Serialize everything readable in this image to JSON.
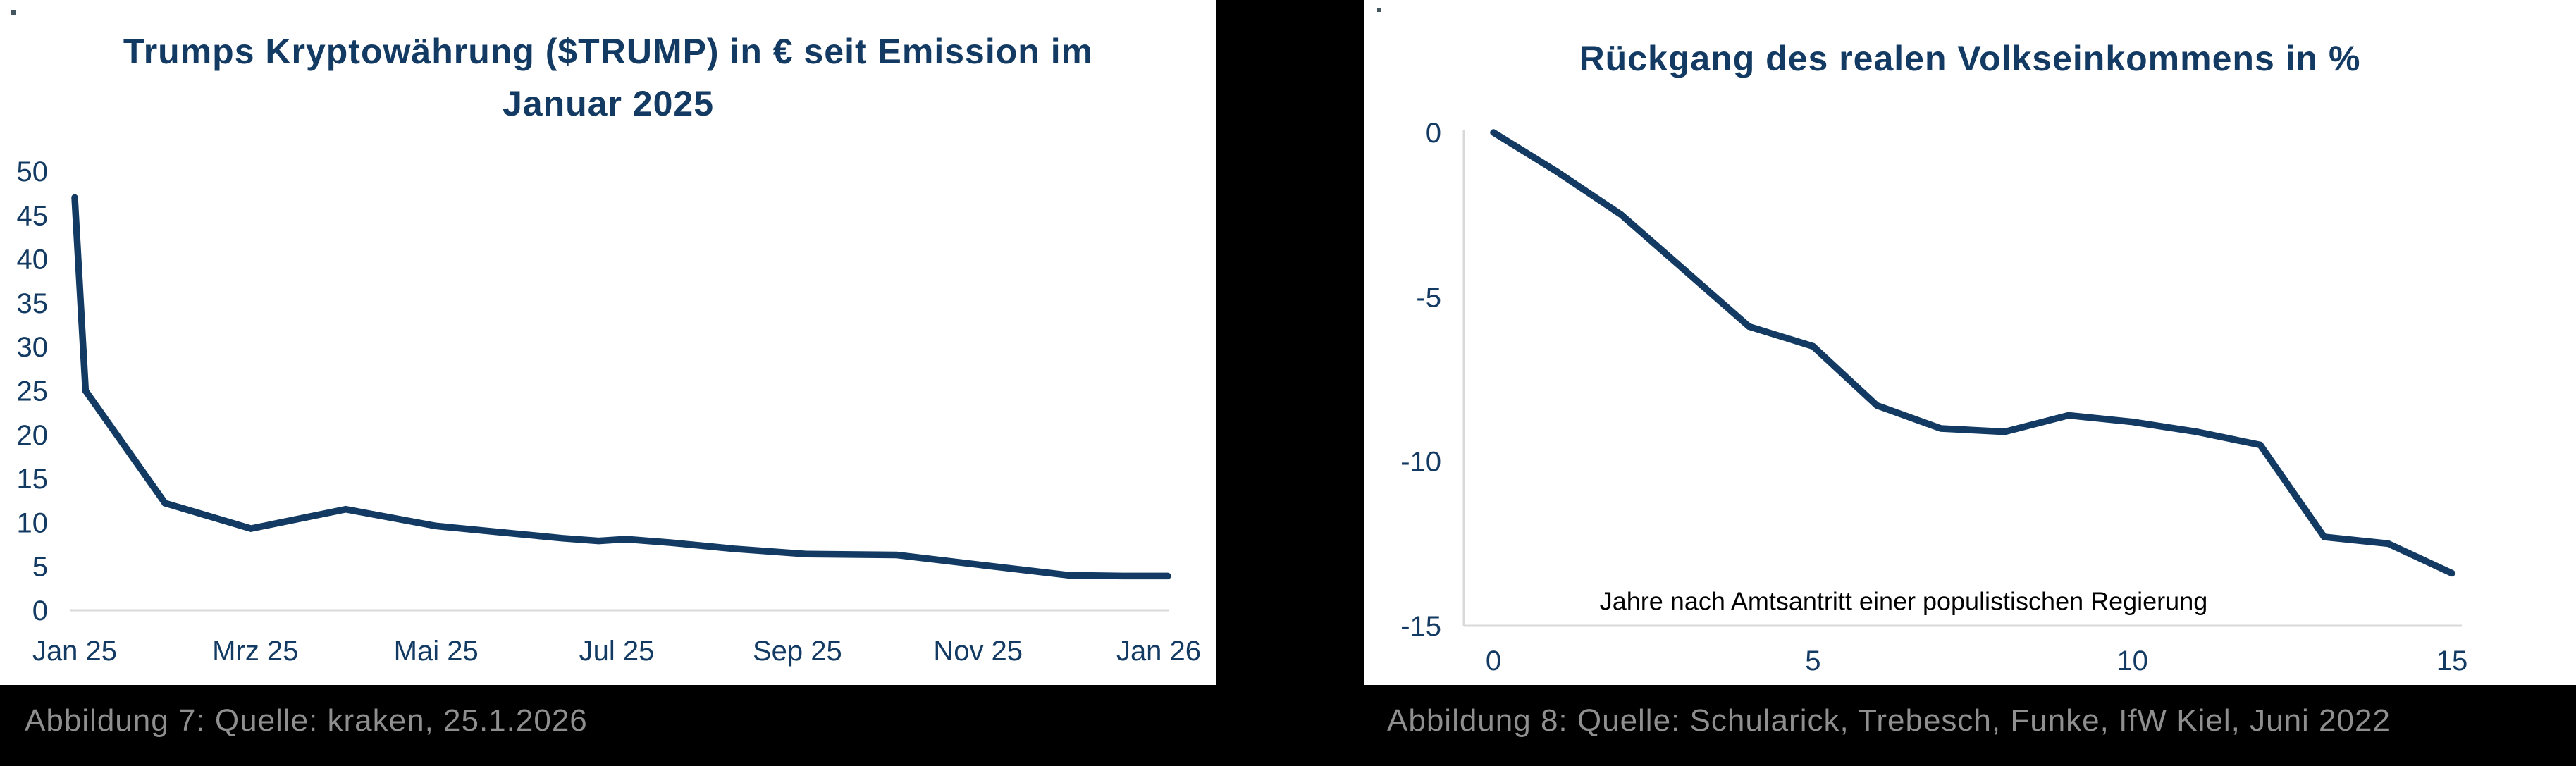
{
  "colors": {
    "background": "#000000",
    "panel": "#ffffff",
    "navy": "#123a62",
    "axis_gray": "#d9d9d9",
    "caption_gray": "#8f8f8f",
    "artifact": "#44565f"
  },
  "captions": {
    "left": "Abbildung 7: Quelle: kraken, 25.1.2026",
    "right": "Abbildung 8: Quelle: Schularick, Trebesch, Funke, IfW Kiel, Juni 2022"
  },
  "chart_data": [
    {
      "id": "trump",
      "type": "line",
      "title_lines": [
        "Trumps Kryptowährung ($TRUMP) in € seit Emission im",
        "Januar 2025"
      ],
      "title": "Trumps Kryptowährung ($TRUMP) in € seit Emission im Januar 2025",
      "xlabel": "",
      "ylabel": "",
      "xlim": [
        0,
        12
      ],
      "ylim": [
        0,
        50
      ],
      "grid": false,
      "legend": false,
      "x_ticks": [
        {
          "x": 0,
          "label": "Jan 25"
        },
        {
          "x": 2,
          "label": "Mrz 25"
        },
        {
          "x": 4,
          "label": "Mai 25"
        },
        {
          "x": 6,
          "label": "Jul 25"
        },
        {
          "x": 8,
          "label": "Sep 25"
        },
        {
          "x": 10,
          "label": "Nov 25"
        },
        {
          "x": 12,
          "label": "Jan 26"
        }
      ],
      "y_ticks": [
        0,
        5,
        10,
        15,
        20,
        25,
        30,
        35,
        40,
        45,
        50
      ],
      "points": [
        [
          0,
          47
        ],
        [
          0.12,
          25
        ],
        [
          1.0,
          12.2
        ],
        [
          1.95,
          9.3
        ],
        [
          3.0,
          11.5
        ],
        [
          4.0,
          9.6
        ],
        [
          4.7,
          8.9
        ],
        [
          5.4,
          8.2
        ],
        [
          5.8,
          7.9
        ],
        [
          6.1,
          8.1
        ],
        [
          6.6,
          7.7
        ],
        [
          7.3,
          7.0
        ],
        [
          8.1,
          6.4
        ],
        [
          9.1,
          6.3
        ],
        [
          10.0,
          5.2
        ],
        [
          11.0,
          4.0
        ],
        [
          11.6,
          3.9
        ],
        [
          12.1,
          3.9
        ]
      ]
    },
    {
      "id": "populism",
      "type": "line",
      "title_lines": [
        "Rückgang des realen Volkseinkommens in %"
      ],
      "title": "Rückgang des realen Volkseinkommens in %",
      "xlabel": "",
      "ylabel": "",
      "xlim": [
        0,
        15
      ],
      "ylim": [
        -15,
        0
      ],
      "grid": false,
      "legend": false,
      "annotation": "Jahre nach Amtsantritt einer populistischen Regierung",
      "x_ticks": [
        {
          "x": 0,
          "label": "0"
        },
        {
          "x": 5,
          "label": "5"
        },
        {
          "x": 10,
          "label": "10"
        },
        {
          "x": 15,
          "label": "15"
        }
      ],
      "y_ticks": [
        0,
        -5,
        -10,
        -15
      ],
      "points": [
        [
          0,
          0
        ],
        [
          1,
          -1.2
        ],
        [
          2,
          -2.5
        ],
        [
          3,
          -4.2
        ],
        [
          4,
          -5.9
        ],
        [
          5,
          -6.5
        ],
        [
          6,
          -8.3
        ],
        [
          7,
          -9.0
        ],
        [
          8,
          -9.1
        ],
        [
          9,
          -8.6
        ],
        [
          10,
          -8.8
        ],
        [
          11,
          -9.1
        ],
        [
          12,
          -9.5
        ],
        [
          13,
          -12.3
        ],
        [
          14,
          -12.5
        ],
        [
          15,
          -13.4
        ]
      ]
    }
  ]
}
